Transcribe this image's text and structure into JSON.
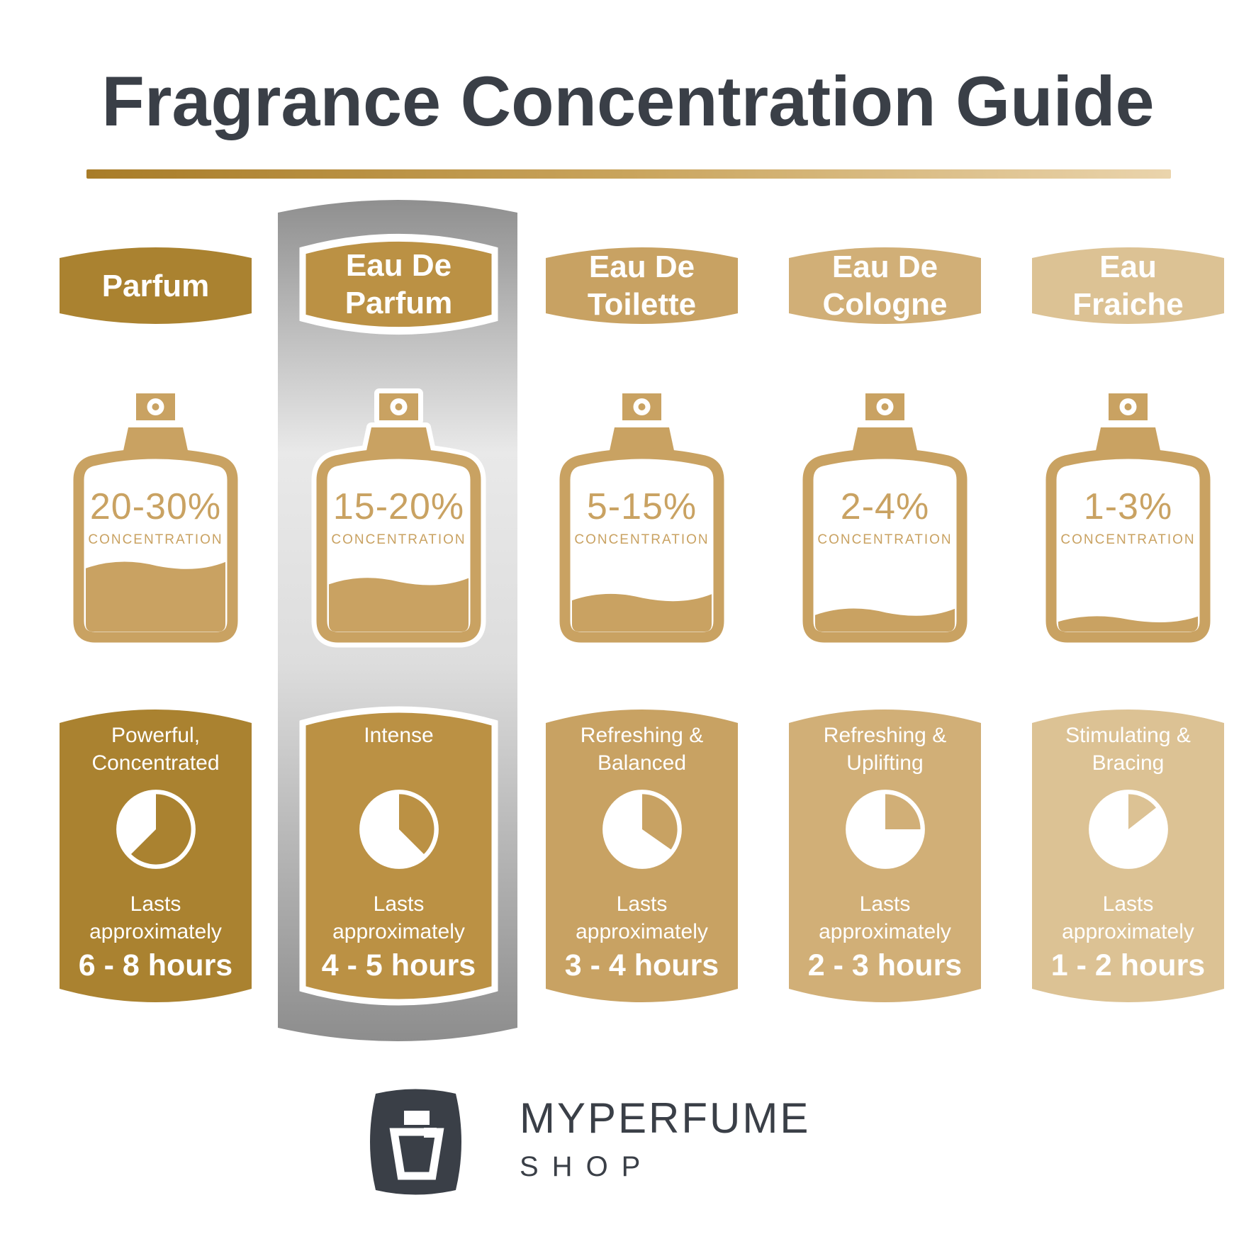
{
  "title": "Fragrance Concentration Guide",
  "ink_color": "#3a3f47",
  "underline_colors": [
    "#a87c28",
    "#c9a45c",
    "#ead4ac"
  ],
  "bottle_color": "#c9a262",
  "highlight_strip_colors": [
    "#8f8f8f",
    "#e9e9e9",
    "#dddddd",
    "#8d8d8d"
  ],
  "labels": {
    "concentration": "CONCENTRATION",
    "lasts": "Lasts approximately"
  },
  "columns": [
    {
      "name": "Parfum",
      "concentration": "20-30%",
      "description": "Powerful,\nConcentrated",
      "hours": "6 - 8 hours",
      "color": "#aa8230",
      "fill_level": 0.46,
      "pie_deg": 225,
      "highlighted": false
    },
    {
      "name": "Eau De\nParfum",
      "concentration": "15-20%",
      "description": "Intense",
      "hours": "4 - 5 hours",
      "color": "#bb9144",
      "fill_level": 0.35,
      "pie_deg": 135,
      "highlighted": true
    },
    {
      "name": "Eau De\nToilette",
      "concentration": "5-15%",
      "description": "Refreshing &\nBalanced",
      "hours": "3 - 4 hours",
      "color": "#c8a263",
      "fill_level": 0.24,
      "pie_deg": 125,
      "highlighted": false
    },
    {
      "name": "Eau De\nCologne",
      "concentration": "2-4%",
      "description": "Refreshing &\nUplifting",
      "hours": "2 - 3 hours",
      "color": "#d1af77",
      "fill_level": 0.14,
      "pie_deg": 90,
      "highlighted": false
    },
    {
      "name": "Eau\nFraiche",
      "concentration": "1-3%",
      "description": "Stimulating &\nBracing",
      "hours": "1 - 2 hours",
      "color": "#dcc294",
      "fill_level": 0.09,
      "pie_deg": 52,
      "highlighted": false
    }
  ],
  "logo": {
    "name": "MYPERFUME",
    "sub": "SHOP"
  }
}
